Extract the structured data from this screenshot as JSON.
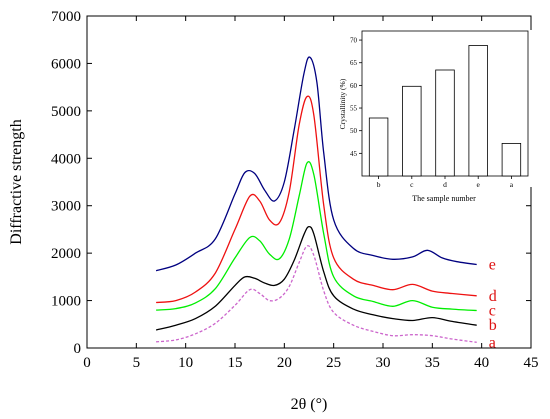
{
  "chart_data": [
    {
      "type": "line",
      "xlabel": "2θ (°)",
      "ylabel": "Diffractive strength",
      "xlim": [
        0,
        45
      ],
      "ylim": [
        0,
        7000
      ],
      "xticks": [
        "0",
        "5",
        "10",
        "15",
        "20",
        "25",
        "30",
        "35",
        "40",
        "45"
      ],
      "yticks": [
        "0",
        "1000",
        "2000",
        "3000",
        "4000",
        "5000",
        "6000",
        "7000"
      ],
      "grid": false,
      "series": [
        {
          "name": "a",
          "color": "#cc66cc",
          "dash": true,
          "points": [
            [
              7,
              130
            ],
            [
              9,
              170
            ],
            [
              11,
              300
            ],
            [
              13,
              520
            ],
            [
              15,
              900
            ],
            [
              16.5,
              1230
            ],
            [
              17.5,
              1150
            ],
            [
              18.5,
              1000
            ],
            [
              19.5,
              1050
            ],
            [
              20.5,
              1300
            ],
            [
              21.5,
              1800
            ],
            [
              22.3,
              2150
            ],
            [
              23,
              1950
            ],
            [
              24,
              1200
            ],
            [
              25,
              750
            ],
            [
              27,
              480
            ],
            [
              29,
              350
            ],
            [
              31,
              260
            ],
            [
              33,
              280
            ],
            [
              35,
              260
            ],
            [
              37,
              190
            ],
            [
              39.5,
              120
            ]
          ]
        },
        {
          "name": "b",
          "color": "#000000",
          "dash": false,
          "points": [
            [
              7,
              380
            ],
            [
              9,
              480
            ],
            [
              11,
              620
            ],
            [
              13,
              880
            ],
            [
              15,
              1320
            ],
            [
              16,
              1500
            ],
            [
              17,
              1470
            ],
            [
              18,
              1370
            ],
            [
              19,
              1320
            ],
            [
              20,
              1450
            ],
            [
              21,
              1850
            ],
            [
              22,
              2400
            ],
            [
              22.5,
              2560
            ],
            [
              23,
              2400
            ],
            [
              24,
              1600
            ],
            [
              25,
              1100
            ],
            [
              27,
              820
            ],
            [
              29,
              700
            ],
            [
              31,
              620
            ],
            [
              33,
              580
            ],
            [
              35,
              640
            ],
            [
              37,
              560
            ],
            [
              39.5,
              480
            ]
          ]
        },
        {
          "name": "c",
          "color": "#00ee00",
          "dash": false,
          "points": [
            [
              7,
              800
            ],
            [
              9,
              830
            ],
            [
              11,
              950
            ],
            [
              13,
              1250
            ],
            [
              15,
              1900
            ],
            [
              16.5,
              2330
            ],
            [
              17.5,
              2260
            ],
            [
              18.5,
              1980
            ],
            [
              19.5,
              1880
            ],
            [
              20.5,
              2300
            ],
            [
              21.5,
              3200
            ],
            [
              22.3,
              3900
            ],
            [
              23,
              3650
            ],
            [
              24,
              2400
            ],
            [
              25,
              1500
            ],
            [
              27,
              1100
            ],
            [
              29,
              980
            ],
            [
              31,
              880
            ],
            [
              33,
              1000
            ],
            [
              35,
              860
            ],
            [
              37,
              820
            ],
            [
              39.5,
              790
            ]
          ]
        },
        {
          "name": "d",
          "color": "#ee1111",
          "dash": false,
          "points": [
            [
              7,
              960
            ],
            [
              9,
              1000
            ],
            [
              11,
              1180
            ],
            [
              13,
              1580
            ],
            [
              15,
              2500
            ],
            [
              16.5,
              3200
            ],
            [
              17.5,
              3100
            ],
            [
              18.5,
              2700
            ],
            [
              19.5,
              2640
            ],
            [
              20.5,
              3300
            ],
            [
              21.5,
              4700
            ],
            [
              22.3,
              5300
            ],
            [
              23,
              4900
            ],
            [
              24,
              3000
            ],
            [
              25,
              1900
            ],
            [
              27,
              1450
            ],
            [
              29,
              1320
            ],
            [
              31,
              1230
            ],
            [
              33,
              1340
            ],
            [
              35,
              1200
            ],
            [
              37,
              1150
            ],
            [
              39.5,
              1100
            ]
          ]
        },
        {
          "name": "e",
          "color": "#000080",
          "dash": false,
          "points": [
            [
              7,
              1630
            ],
            [
              9,
              1750
            ],
            [
              11,
              2000
            ],
            [
              13,
              2300
            ],
            [
              15,
              3250
            ],
            [
              16,
              3700
            ],
            [
              17,
              3680
            ],
            [
              18,
              3330
            ],
            [
              19,
              3100
            ],
            [
              20,
              3500
            ],
            [
              21,
              4600
            ],
            [
              22,
              5800
            ],
            [
              22.6,
              6130
            ],
            [
              23.3,
              5600
            ],
            [
              24,
              4100
            ],
            [
              25,
              2700
            ],
            [
              27,
              2100
            ],
            [
              29,
              1950
            ],
            [
              31,
              1870
            ],
            [
              33,
              1920
            ],
            [
              34.5,
              2060
            ],
            [
              36,
              1900
            ],
            [
              37.5,
              1820
            ],
            [
              39.5,
              1760
            ]
          ]
        }
      ],
      "curve_labels": [
        "a",
        "b",
        "c",
        "d",
        "e"
      ],
      "label_color": "#dd1111"
    },
    {
      "type": "bar",
      "categories": [
        "b",
        "c",
        "d",
        "e",
        "a"
      ],
      "values": [
        52.8,
        59.8,
        63.4,
        68.8,
        47.2
      ],
      "xlabel": "The sample number",
      "ylabel": "Crystallinity (%)",
      "ylim": [
        40,
        72
      ],
      "yticks": [
        "45",
        "50",
        "55",
        "60",
        "65",
        "70"
      ],
      "grid": false
    }
  ]
}
